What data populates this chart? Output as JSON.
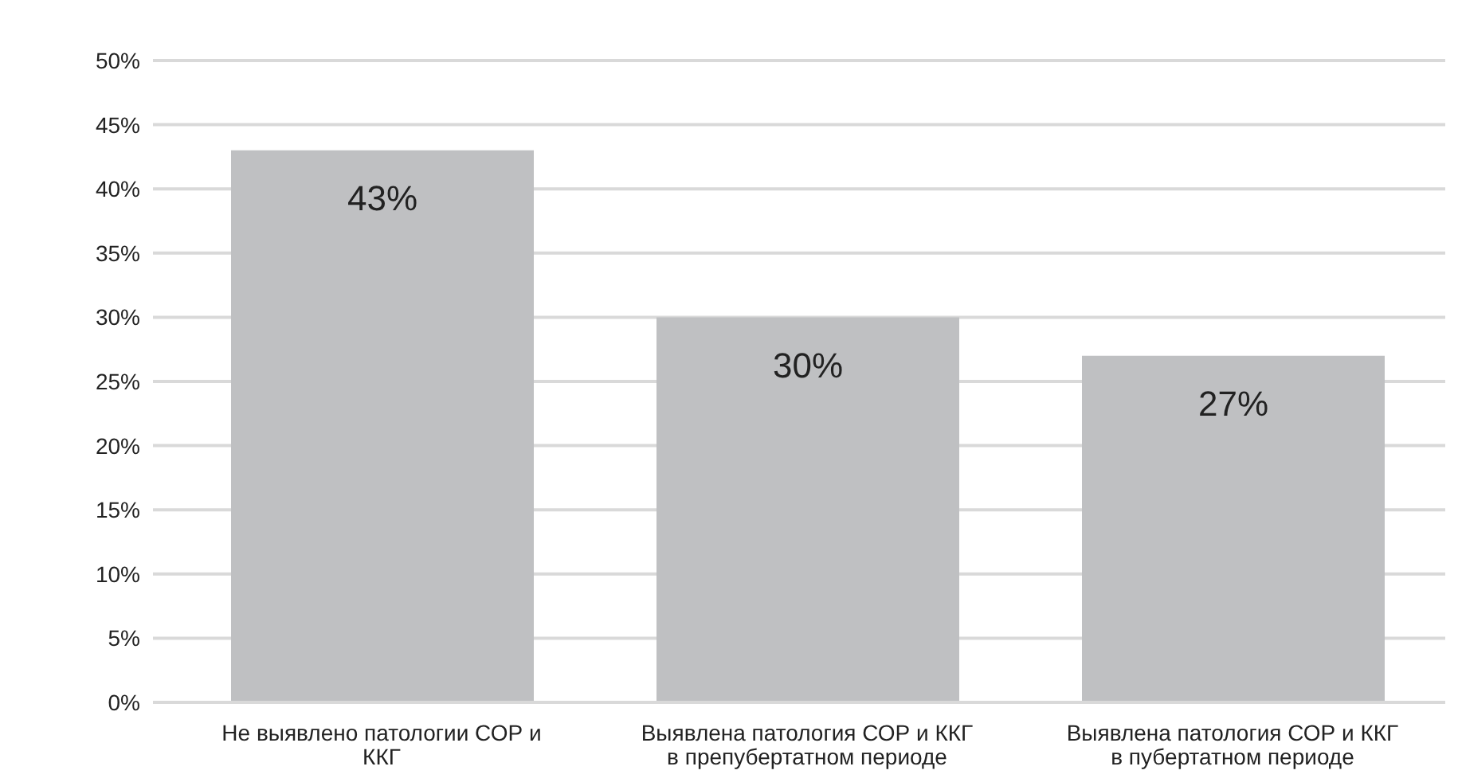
{
  "chart_data": {
    "type": "bar",
    "categories": [
      "Не выявлено патологии СОР и ККГ",
      "Выявлена патология СОР и ККГ в препубертатном периоде",
      "Выявлена патология СОР и ККГ в пубертатном периоде"
    ],
    "values": [
      43,
      30,
      27
    ],
    "color": "#bfc0c2",
    "value_labels": [
      "43%",
      "30%",
      "27%"
    ],
    "ylim": [
      0,
      50
    ],
    "yticks": [
      {
        "value": 0,
        "label": "0%"
      },
      {
        "value": 5,
        "label": "5%"
      },
      {
        "value": 10,
        "label": "10%"
      },
      {
        "value": 15,
        "label": "15%"
      },
      {
        "value": 20,
        "label": "20%"
      },
      {
        "value": 25,
        "label": "25%"
      },
      {
        "value": 30,
        "label": "30%"
      },
      {
        "value": 35,
        "label": "35%"
      },
      {
        "value": 40,
        "label": "40%"
      },
      {
        "value": 45,
        "label": "45%"
      },
      {
        "value": 50,
        "label": "50%"
      }
    ],
    "grid": "y"
  }
}
